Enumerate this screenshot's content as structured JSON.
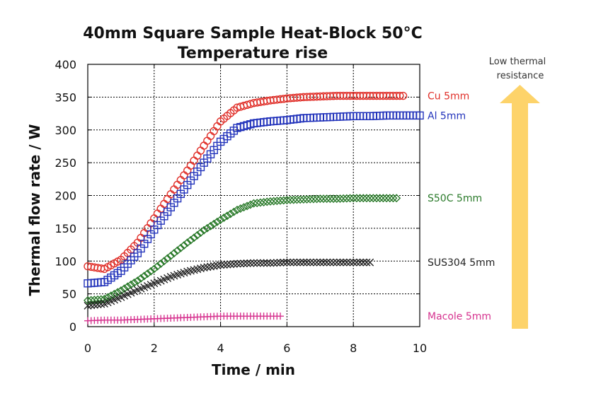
{
  "chart_data": {
    "type": "scatter",
    "title_line1": "40mm Square Sample Heat-Block 50°C",
    "title_line2": "Temperature rise",
    "xlabel": "Time / min",
    "ylabel": "Thermal flow rate / W",
    "xlim": [
      0,
      10
    ],
    "ylim": [
      0,
      400
    ],
    "x_ticks": [
      0,
      2,
      4,
      6,
      8,
      10
    ],
    "y_ticks": [
      0,
      50,
      100,
      150,
      200,
      250,
      300,
      350,
      400
    ],
    "grid": true,
    "annotation": "Low thermal resistance",
    "series": [
      {
        "name": "Cu 5mm",
        "marker": "circle",
        "color": "#e0302a",
        "x": [
          0.0,
          0.5,
          1.0,
          1.5,
          2.0,
          2.5,
          3.0,
          3.5,
          4.0,
          4.5,
          5.0,
          5.5,
          6.0,
          6.5,
          7.0,
          7.5,
          8.0,
          8.5,
          9.0,
          9.5
        ],
        "y": [
          92,
          88,
          102,
          128,
          165,
          202,
          238,
          276,
          313,
          334,
          341,
          345,
          348,
          350,
          351,
          352,
          352,
          352,
          352,
          352
        ]
      },
      {
        "name": "Al 5mm",
        "marker": "square",
        "color": "#2233bb",
        "x": [
          0.0,
          0.5,
          1.0,
          1.5,
          2.0,
          2.5,
          3.0,
          3.5,
          4.0,
          4.5,
          5.0,
          5.5,
          6.0,
          6.5,
          7.0,
          7.5,
          8.0,
          8.5,
          9.0,
          9.5,
          10.0
        ],
        "y": [
          66,
          68,
          85,
          112,
          148,
          182,
          216,
          250,
          282,
          303,
          310,
          313,
          315,
          318,
          319,
          320,
          321,
          321,
          322,
          322,
          322
        ]
      },
      {
        "name": "S50C 5mm",
        "marker": "diamond",
        "color": "#2a7a2a",
        "x": [
          0.0,
          0.5,
          1.0,
          1.5,
          2.0,
          2.5,
          3.0,
          3.5,
          4.0,
          4.5,
          5.0,
          5.5,
          6.0,
          6.5,
          7.0,
          7.5,
          8.0,
          8.5,
          9.0,
          9.3
        ],
        "y": [
          40,
          42,
          55,
          70,
          88,
          108,
          128,
          147,
          163,
          178,
          188,
          191,
          193,
          194,
          195,
          195,
          196,
          196,
          196,
          196
        ]
      },
      {
        "name": "SUS304 5mm",
        "marker": "cross",
        "color": "#222222",
        "x": [
          0.0,
          0.5,
          1.0,
          1.5,
          2.0,
          2.5,
          3.0,
          3.5,
          4.0,
          4.5,
          5.0,
          5.5,
          6.0,
          6.5,
          7.0,
          7.5,
          8.0,
          8.5
        ],
        "y": [
          32,
          35,
          45,
          56,
          66,
          76,
          84,
          90,
          94,
          96,
          97,
          97,
          98,
          98,
          98,
          98,
          98,
          98
        ]
      },
      {
        "name": "Macole 5mm",
        "marker": "plus",
        "color": "#d6338f",
        "x": [
          0.0,
          0.5,
          1.0,
          1.5,
          2.0,
          2.5,
          3.0,
          3.5,
          4.0,
          4.5,
          5.0,
          5.5,
          5.8
        ],
        "y": [
          9,
          10,
          10,
          11,
          12,
          13,
          14,
          15,
          16,
          16,
          16,
          16,
          16
        ]
      }
    ]
  },
  "colors": {
    "arrow": "#fdd36a",
    "grid": "#000000"
  }
}
